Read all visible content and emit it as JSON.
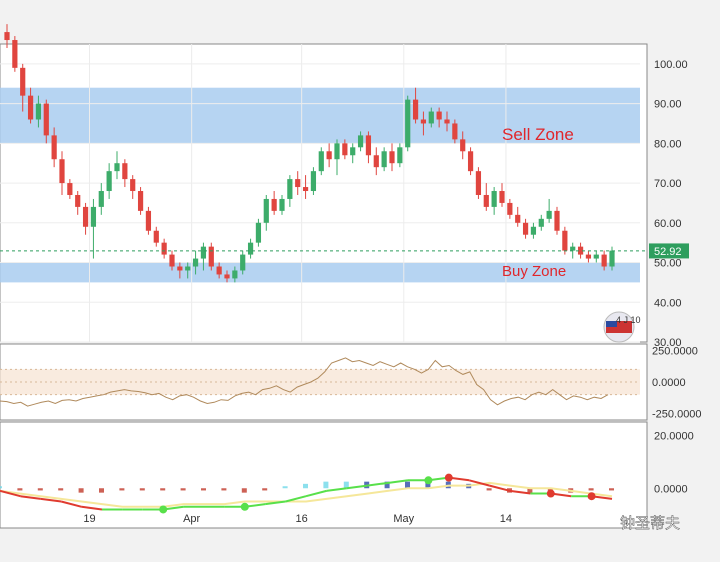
{
  "chart_data": [
    {
      "type": "candlestick",
      "panel": "price",
      "y_ticks": [
        "100.00",
        "90.00",
        "80.00",
        "70.00",
        "60.00",
        "50.00",
        "40.00",
        "30.00"
      ],
      "y_tick_values": [
        100,
        90,
        80,
        70,
        60,
        50,
        40,
        30
      ],
      "ylim": [
        30,
        105
      ],
      "last_price_label": "52.92",
      "last_price": 52.92,
      "zones": [
        {
          "label": "Sell Zone",
          "from": 80,
          "to": 94
        },
        {
          "label": "Buy Zone",
          "from": 45,
          "to": 50
        }
      ],
      "candles": [
        [
          108,
          110,
          104,
          106
        ],
        [
          106,
          107,
          98,
          99
        ],
        [
          99,
          100,
          88,
          92
        ],
        [
          92,
          94,
          85,
          86
        ],
        [
          86,
          92,
          84,
          90
        ],
        [
          90,
          91,
          80,
          82
        ],
        [
          82,
          84,
          74,
          76
        ],
        [
          76,
          78,
          67,
          70
        ],
        [
          70,
          71,
          66,
          67
        ],
        [
          67,
          68,
          62,
          64
        ],
        [
          64,
          65,
          57,
          59
        ],
        [
          59,
          66,
          51,
          64
        ],
        [
          64,
          70,
          62,
          68
        ],
        [
          68,
          75,
          66,
          73
        ],
        [
          73,
          78,
          71,
          75
        ],
        [
          75,
          76,
          69,
          71
        ],
        [
          71,
          72,
          66,
          68
        ],
        [
          68,
          69,
          62,
          63
        ],
        [
          63,
          64,
          57,
          58
        ],
        [
          58,
          59,
          54,
          55
        ],
        [
          55,
          56,
          51,
          52
        ],
        [
          52,
          53,
          48,
          49
        ],
        [
          49,
          50,
          46,
          48
        ],
        [
          48,
          50,
          46,
          49
        ],
        [
          49,
          53,
          47,
          51
        ],
        [
          51,
          55,
          48,
          54
        ],
        [
          54,
          55,
          48,
          49
        ],
        [
          49,
          50,
          46,
          47
        ],
        [
          47,
          48,
          45,
          46
        ],
        [
          46,
          49,
          45,
          48
        ],
        [
          48,
          53,
          47,
          52
        ],
        [
          52,
          56,
          51,
          55
        ],
        [
          55,
          61,
          54,
          60
        ],
        [
          60,
          67,
          58,
          66
        ],
        [
          66,
          68,
          62,
          63
        ],
        [
          63,
          67,
          62,
          66
        ],
        [
          66,
          72,
          64,
          71
        ],
        [
          71,
          73,
          67,
          69
        ],
        [
          69,
          72,
          66,
          68
        ],
        [
          68,
          74,
          67,
          73
        ],
        [
          73,
          79,
          72,
          78
        ],
        [
          78,
          80,
          74,
          76
        ],
        [
          76,
          81,
          72,
          80
        ],
        [
          80,
          81,
          76,
          77
        ],
        [
          77,
          80,
          75,
          79
        ],
        [
          79,
          83,
          78,
          82
        ],
        [
          82,
          83,
          75,
          77
        ],
        [
          77,
          79,
          72,
          74
        ],
        [
          74,
          79,
          73,
          78
        ],
        [
          78,
          80,
          73,
          75
        ],
        [
          75,
          80,
          74,
          79
        ],
        [
          79,
          92,
          78,
          91
        ],
        [
          91,
          94,
          85,
          86
        ],
        [
          86,
          88,
          82,
          85
        ],
        [
          85,
          89,
          84,
          88
        ],
        [
          88,
          89,
          84,
          86
        ],
        [
          86,
          88,
          83,
          85
        ],
        [
          85,
          86,
          80,
          81
        ],
        [
          81,
          83,
          76,
          78
        ],
        [
          78,
          79,
          72,
          73
        ],
        [
          73,
          74,
          66,
          67
        ],
        [
          67,
          70,
          63,
          64
        ],
        [
          64,
          69,
          62,
          68
        ],
        [
          68,
          70,
          64,
          65
        ],
        [
          65,
          66,
          61,
          62
        ],
        [
          62,
          64,
          59,
          60
        ],
        [
          60,
          61,
          56,
          57
        ],
        [
          57,
          60,
          56,
          59
        ],
        [
          59,
          62,
          58,
          61
        ],
        [
          61,
          66,
          60,
          63
        ],
        [
          63,
          64,
          57,
          58
        ],
        [
          58,
          59,
          52,
          53
        ],
        [
          53,
          55,
          51,
          54
        ],
        [
          54,
          55,
          51,
          52
        ],
        [
          52,
          53,
          50,
          51
        ],
        [
          51,
          53,
          50,
          52
        ],
        [
          52,
          53,
          48,
          49
        ],
        [
          49,
          54,
          48,
          53
        ]
      ]
    },
    {
      "type": "line",
      "panel": "oscillator-1",
      "y_ticks": [
        "250.0000",
        "0.0000",
        "-250.0000"
      ],
      "y_tick_values": [
        250,
        0,
        -250
      ],
      "ylim": [
        -300,
        300
      ],
      "band": [
        -100,
        100
      ],
      "values": [
        -150,
        -155,
        -170,
        -160,
        -190,
        -175,
        -160,
        -150,
        -170,
        -145,
        -140,
        -150,
        -130,
        -120,
        -110,
        -100,
        -80,
        -70,
        -60,
        -70,
        -75,
        -85,
        -100,
        -90,
        -120,
        -140,
        -110,
        -100,
        -120,
        -150,
        -170,
        -160,
        -140,
        -145,
        -110,
        -90,
        -80,
        -100,
        -60,
        -50,
        -30,
        -60,
        -80,
        -40,
        -20,
        0,
        30,
        80,
        150,
        170,
        190,
        160,
        170,
        150,
        130,
        160,
        140,
        120,
        150,
        120,
        100,
        70,
        100,
        170,
        120,
        130,
        90,
        60,
        80,
        -20,
        -60,
        -140,
        -180,
        -150,
        -130,
        -120,
        -140,
        -100,
        -80,
        -100,
        -60,
        -100,
        -140,
        -110,
        -120,
        -140,
        -120,
        -130,
        -100
      ]
    },
    {
      "type": "line",
      "panel": "oscillator-2",
      "y_ticks": [
        "20.0000",
        "0.0000"
      ],
      "y_tick_values": [
        20,
        0
      ],
      "ylim": [
        -15,
        25
      ],
      "signal": [
        -1,
        -2,
        -3,
        -4,
        -5,
        -6,
        -7,
        -7,
        -7,
        -6,
        -6,
        -6,
        -5,
        -5,
        -5,
        -5,
        -4,
        -3,
        -2,
        -1,
        0,
        0,
        1,
        1,
        2,
        1,
        0,
        0,
        -1,
        -2,
        -3
      ],
      "oscillator": [
        -1,
        -3,
        -4,
        -5,
        -7,
        -8,
        -8,
        -8,
        -8,
        -7,
        -7,
        -7,
        -7,
        -6,
        -5,
        -3,
        -1,
        0,
        1,
        2,
        3,
        3,
        4,
        3,
        1,
        -1,
        -2,
        -2,
        -3,
        -3,
        -4
      ]
    }
  ],
  "x_ticks": [
    "19",
    "Apr",
    "16",
    "May",
    "14"
  ],
  "x_tick_positions": [
    10.5,
    23.5,
    37.5,
    50.5,
    63.5
  ],
  "watermark": "钟圣蒂夫"
}
